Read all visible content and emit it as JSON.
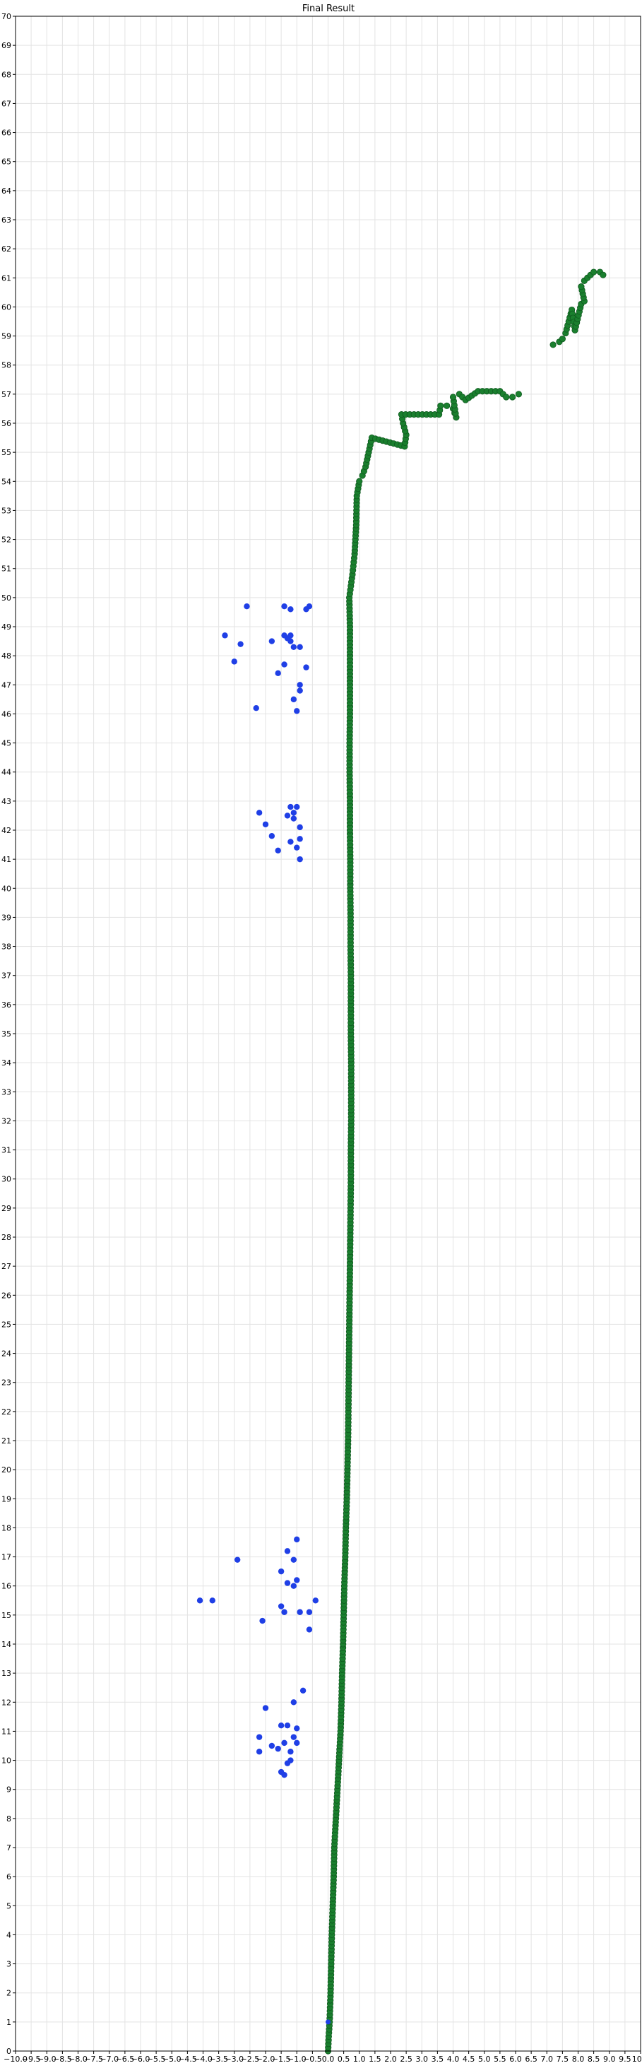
{
  "chart_data": {
    "type": "scatter",
    "title": "Final Result",
    "xlabel": "",
    "ylabel": "",
    "xlim": [
      -10,
      10
    ],
    "ylim": [
      0,
      70
    ],
    "grid": true,
    "x_ticks": [
      -10.0,
      -9.5,
      -9.0,
      -8.5,
      -8.0,
      -7.5,
      -7.0,
      -6.5,
      -6.0,
      -5.5,
      -5.0,
      -4.5,
      -4.0,
      -3.5,
      -3.0,
      -2.5,
      -2.0,
      -1.5,
      -1.0,
      -0.5,
      0.0,
      0.5,
      1.0,
      1.5,
      2.0,
      2.5,
      3.0,
      3.5,
      4.0,
      4.5,
      5.0,
      5.5,
      6.0,
      6.5,
      7.0,
      7.5,
      8.0,
      8.5,
      9.0,
      9.5,
      10.0
    ],
    "x_tick_labels": [
      "−10.0",
      "−9.5",
      "−9.0",
      "−8.5",
      "−8.0",
      "−7.5",
      "−7.0",
      "−6.5",
      "−6.0",
      "−5.5",
      "−5.0",
      "−4.5",
      "−4.0",
      "−3.5",
      "−3.0",
      "−2.5",
      "−2.0",
      "−1.5",
      "−1.0",
      "−0.5",
      "0.0",
      "0.5",
      "1.0",
      "1.5",
      "2.0",
      "2.5",
      "3.0",
      "3.5",
      "4.0",
      "4.5",
      "5.0",
      "5.5",
      "6.0",
      "6.5",
      "7.0",
      "7.5",
      "8.0",
      "8.5",
      "9.0",
      "9.5",
      "10.0"
    ],
    "y_ticks": [
      0,
      1,
      2,
      3,
      4,
      5,
      6,
      7,
      8,
      9,
      10,
      11,
      12,
      13,
      14,
      15,
      16,
      17,
      18,
      19,
      20,
      21,
      22,
      23,
      24,
      25,
      26,
      27,
      28,
      29,
      30,
      31,
      32,
      33,
      34,
      35,
      36,
      37,
      38,
      39,
      40,
      41,
      42,
      43,
      44,
      45,
      46,
      47,
      48,
      49,
      50,
      51,
      52,
      53,
      54,
      55,
      56,
      57,
      58,
      59,
      60,
      61,
      62,
      63,
      64,
      65,
      66,
      67,
      68,
      69,
      70
    ],
    "colors": {
      "path": "#1a7f2e",
      "path_edge": "#0f5a1f",
      "landmarks": "#1f3fe6",
      "start": "#1f3fe6"
    },
    "series": [
      {
        "marker": "path",
        "color": "#1a7f2e",
        "points": [
          [
            0.0,
            0.0
          ],
          [
            0.02,
            0.5
          ],
          [
            0.05,
            1.0
          ],
          [
            0.08,
            2.0
          ],
          [
            0.1,
            3.0
          ],
          [
            0.12,
            4.0
          ],
          [
            0.15,
            5.0
          ],
          [
            0.18,
            6.0
          ],
          [
            0.2,
            7.0
          ],
          [
            0.25,
            8.0
          ],
          [
            0.3,
            9.0
          ],
          [
            0.35,
            10.0
          ],
          [
            0.4,
            11.0
          ],
          [
            0.43,
            12.0
          ],
          [
            0.45,
            13.0
          ],
          [
            0.48,
            14.0
          ],
          [
            0.5,
            15.0
          ],
          [
            0.52,
            16.0
          ],
          [
            0.55,
            17.0
          ],
          [
            0.57,
            18.0
          ],
          [
            0.6,
            19.0
          ],
          [
            0.62,
            20.0
          ],
          [
            0.64,
            21.0
          ],
          [
            0.65,
            22.0
          ],
          [
            0.66,
            23.0
          ],
          [
            0.67,
            24.0
          ],
          [
            0.68,
            25.0
          ],
          [
            0.69,
            26.0
          ],
          [
            0.7,
            27.0
          ],
          [
            0.71,
            28.0
          ],
          [
            0.72,
            29.0
          ],
          [
            0.73,
            30.0
          ],
          [
            0.73,
            31.0
          ],
          [
            0.74,
            32.0
          ],
          [
            0.74,
            33.0
          ],
          [
            0.74,
            34.0
          ],
          [
            0.73,
            35.0
          ],
          [
            0.73,
            36.0
          ],
          [
            0.73,
            37.0
          ],
          [
            0.72,
            38.0
          ],
          [
            0.72,
            39.0
          ],
          [
            0.71,
            40.0
          ],
          [
            0.71,
            41.0
          ],
          [
            0.7,
            42.0
          ],
          [
            0.7,
            43.0
          ],
          [
            0.69,
            44.0
          ],
          [
            0.69,
            45.0
          ],
          [
            0.7,
            46.0
          ],
          [
            0.7,
            47.0
          ],
          [
            0.7,
            48.0
          ],
          [
            0.7,
            49.0
          ],
          [
            0.68,
            50.0
          ],
          [
            0.78,
            50.8
          ],
          [
            0.85,
            51.5
          ],
          [
            0.9,
            52.5
          ],
          [
            0.92,
            53.5
          ],
          [
            1.0,
            54.0
          ],
          [
            1.1,
            54.2
          ],
          [
            1.2,
            54.5
          ],
          [
            1.3,
            55.0
          ],
          [
            1.4,
            55.5
          ],
          [
            2.45,
            55.2
          ],
          [
            2.5,
            55.6
          ],
          [
            2.4,
            56.0
          ],
          [
            2.35,
            56.3
          ],
          [
            3.55,
            56.3
          ],
          [
            3.6,
            56.6
          ],
          [
            3.8,
            56.6
          ],
          [
            4.0,
            56.5
          ],
          [
            4.1,
            56.2
          ],
          [
            4.0,
            56.9
          ],
          [
            4.2,
            57.0
          ],
          [
            4.4,
            56.8
          ],
          [
            4.8,
            57.1
          ],
          [
            5.5,
            57.1
          ],
          [
            5.7,
            56.9
          ],
          [
            5.9,
            56.9
          ],
          [
            6.1,
            57.0
          ],
          [
            7.2,
            58.7
          ],
          [
            7.4,
            58.8
          ],
          [
            7.5,
            58.9
          ],
          [
            7.6,
            59.1
          ],
          [
            7.7,
            59.5
          ],
          [
            7.8,
            59.9
          ],
          [
            7.9,
            59.2
          ],
          [
            8.1,
            60.1
          ],
          [
            8.2,
            60.2
          ],
          [
            8.1,
            60.7
          ],
          [
            8.2,
            60.9
          ],
          [
            8.3,
            61.0
          ],
          [
            8.5,
            61.2
          ],
          [
            8.7,
            61.2
          ],
          [
            8.8,
            61.1
          ]
        ]
      },
      {
        "marker": "landmarks",
        "color": "#1f3fe6",
        "points": [
          [
            -1.5,
            9.6
          ],
          [
            -1.4,
            9.5
          ],
          [
            -1.3,
            9.9
          ],
          [
            -1.2,
            10.0
          ],
          [
            -1.2,
            10.3
          ],
          [
            -1.4,
            10.6
          ],
          [
            -1.6,
            10.4
          ],
          [
            -1.8,
            10.5
          ],
          [
            -2.2,
            10.3
          ],
          [
            -2.2,
            10.8
          ],
          [
            -1.0,
            10.6
          ],
          [
            -1.1,
            10.8
          ],
          [
            -1.0,
            11.1
          ],
          [
            -1.3,
            11.2
          ],
          [
            -1.5,
            11.2
          ],
          [
            -2.0,
            11.8
          ],
          [
            -1.1,
            12.0
          ],
          [
            -0.8,
            12.4
          ],
          [
            -2.1,
            14.8
          ],
          [
            -1.4,
            15.1
          ],
          [
            -1.5,
            15.3
          ],
          [
            -0.9,
            15.1
          ],
          [
            -0.6,
            15.1
          ],
          [
            -0.6,
            14.5
          ],
          [
            -0.4,
            15.5
          ],
          [
            -3.7,
            15.5
          ],
          [
            -4.1,
            15.5
          ],
          [
            -1.1,
            16.0
          ],
          [
            -1.0,
            16.2
          ],
          [
            -1.3,
            16.1
          ],
          [
            -1.5,
            16.5
          ],
          [
            -2.9,
            16.9
          ],
          [
            -1.1,
            16.9
          ],
          [
            -1.3,
            17.2
          ],
          [
            -1.0,
            17.6
          ],
          [
            -0.9,
            41.0
          ],
          [
            -1.0,
            41.4
          ],
          [
            -1.2,
            41.6
          ],
          [
            -0.9,
            41.7
          ],
          [
            -1.6,
            41.3
          ],
          [
            -1.8,
            41.8
          ],
          [
            -2.0,
            42.2
          ],
          [
            -0.9,
            42.1
          ],
          [
            -1.1,
            42.4
          ],
          [
            -1.3,
            42.5
          ],
          [
            -1.1,
            42.6
          ],
          [
            -2.2,
            42.6
          ],
          [
            -1.2,
            42.8
          ],
          [
            -1.0,
            42.8
          ],
          [
            -1.0,
            46.1
          ],
          [
            -1.1,
            46.5
          ],
          [
            -0.9,
            46.8
          ],
          [
            -2.3,
            46.2
          ],
          [
            -0.9,
            47.0
          ],
          [
            -1.6,
            47.4
          ],
          [
            -0.7,
            47.6
          ],
          [
            -1.4,
            47.7
          ],
          [
            -3.0,
            47.8
          ],
          [
            -0.9,
            48.3
          ],
          [
            -1.1,
            48.3
          ],
          [
            -2.8,
            48.4
          ],
          [
            -1.2,
            48.5
          ],
          [
            -1.3,
            48.6
          ],
          [
            -1.4,
            48.7
          ],
          [
            -1.2,
            48.7
          ],
          [
            -1.8,
            48.5
          ],
          [
            -3.3,
            48.7
          ],
          [
            -1.2,
            49.6
          ],
          [
            -1.4,
            49.7
          ],
          [
            -0.7,
            49.6
          ],
          [
            -0.6,
            49.7
          ],
          [
            -2.6,
            49.7
          ]
        ]
      },
      {
        "marker": "start",
        "color": "#1f3fe6",
        "points": [
          [
            0.0,
            1.0
          ]
        ]
      }
    ]
  }
}
